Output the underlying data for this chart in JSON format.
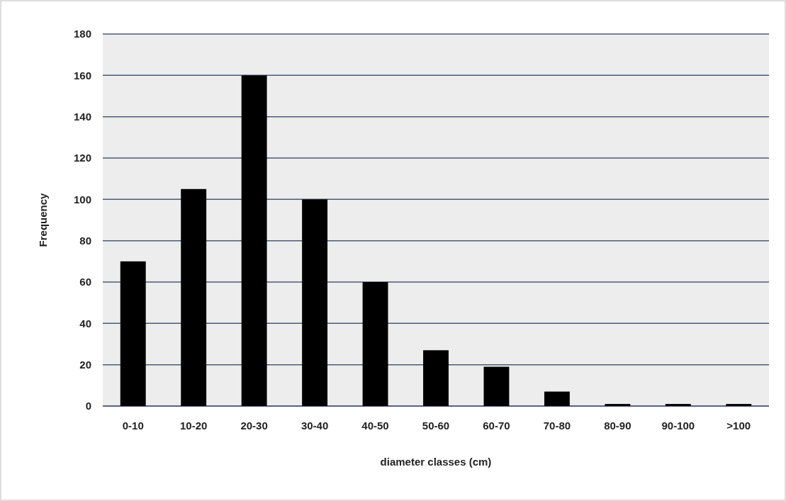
{
  "chart_data": {
    "type": "bar",
    "xlabel": "diameter classes (cm)",
    "ylabel": "Frequency",
    "categories": [
      "0-10",
      "10-20",
      "20-30",
      "30-40",
      "40-50",
      "50-60",
      "60-70",
      "70-80",
      "80-90",
      "90-100",
      ">100"
    ],
    "values": [
      70,
      105,
      160,
      100,
      60,
      27,
      19,
      7,
      1,
      1,
      1
    ],
    "color": "#000000",
    "ylim": [
      0,
      180
    ],
    "yticks": [
      0,
      20,
      40,
      60,
      80,
      100,
      120,
      140,
      160,
      180
    ],
    "grid": "y"
  }
}
